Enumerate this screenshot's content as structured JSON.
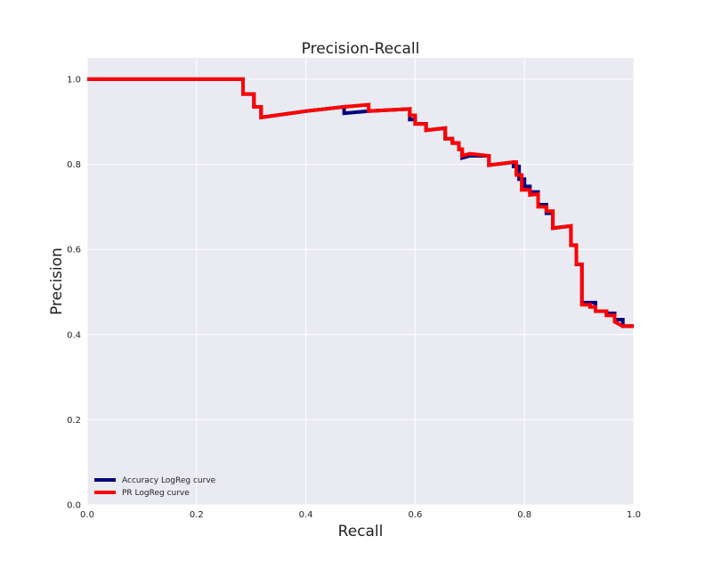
{
  "chart_data": {
    "type": "line",
    "title": "Precision-Recall",
    "xlabel": "Recall",
    "ylabel": "Precision",
    "xlim": [
      0.0,
      1.0
    ],
    "ylim": [
      0.0,
      1.05
    ],
    "xticks": [
      "0.0",
      "0.2",
      "0.4",
      "0.6",
      "0.8",
      "1.0"
    ],
    "yticks": [
      "0.0",
      "0.2",
      "0.4",
      "0.6",
      "0.8",
      "1.0"
    ],
    "xtick_values": [
      0.0,
      0.2,
      0.4,
      0.6,
      0.8,
      1.0
    ],
    "ytick_values": [
      0.0,
      0.2,
      0.4,
      0.6,
      0.8,
      1.0
    ],
    "grid": true,
    "legend_position": "lower-left",
    "series": [
      {
        "name": "Accuracy LogReg curve",
        "color": "#000080",
        "points": [
          [
            0.0,
            1.0
          ],
          [
            0.285,
            1.0
          ],
          [
            0.285,
            0.965
          ],
          [
            0.305,
            0.965
          ],
          [
            0.305,
            0.935
          ],
          [
            0.318,
            0.935
          ],
          [
            0.318,
            0.91
          ],
          [
            0.4,
            0.925
          ],
          [
            0.47,
            0.935
          ],
          [
            0.47,
            0.92
          ],
          [
            0.515,
            0.925
          ],
          [
            0.59,
            0.93
          ],
          [
            0.59,
            0.905
          ],
          [
            0.6,
            0.905
          ],
          [
            0.6,
            0.895
          ],
          [
            0.62,
            0.895
          ],
          [
            0.62,
            0.88
          ],
          [
            0.655,
            0.885
          ],
          [
            0.655,
            0.86
          ],
          [
            0.668,
            0.86
          ],
          [
            0.668,
            0.85
          ],
          [
            0.68,
            0.85
          ],
          [
            0.68,
            0.835
          ],
          [
            0.686,
            0.835
          ],
          [
            0.686,
            0.815
          ],
          [
            0.7,
            0.82
          ],
          [
            0.735,
            0.82
          ],
          [
            0.735,
            0.798
          ],
          [
            0.78,
            0.805
          ],
          [
            0.78,
            0.795
          ],
          [
            0.79,
            0.795
          ],
          [
            0.79,
            0.765
          ],
          [
            0.8,
            0.765
          ],
          [
            0.8,
            0.748
          ],
          [
            0.81,
            0.748
          ],
          [
            0.81,
            0.735
          ],
          [
            0.825,
            0.735
          ],
          [
            0.825,
            0.705
          ],
          [
            0.84,
            0.705
          ],
          [
            0.84,
            0.685
          ],
          [
            0.852,
            0.685
          ],
          [
            0.852,
            0.65
          ],
          [
            0.885,
            0.655
          ],
          [
            0.885,
            0.61
          ],
          [
            0.895,
            0.61
          ],
          [
            0.895,
            0.565
          ],
          [
            0.905,
            0.565
          ],
          [
            0.905,
            0.475
          ],
          [
            0.93,
            0.475
          ],
          [
            0.93,
            0.455
          ],
          [
            0.95,
            0.455
          ],
          [
            0.95,
            0.45
          ],
          [
            0.965,
            0.45
          ],
          [
            0.965,
            0.435
          ],
          [
            0.98,
            0.435
          ],
          [
            0.98,
            0.42
          ],
          [
            1.0,
            0.42
          ]
        ]
      },
      {
        "name": "PR LogReg curve",
        "color": "#ff0000",
        "points": [
          [
            0.0,
            1.0
          ],
          [
            0.285,
            1.0
          ],
          [
            0.285,
            0.965
          ],
          [
            0.305,
            0.965
          ],
          [
            0.305,
            0.935
          ],
          [
            0.318,
            0.935
          ],
          [
            0.318,
            0.91
          ],
          [
            0.4,
            0.925
          ],
          [
            0.47,
            0.935
          ],
          [
            0.515,
            0.94
          ],
          [
            0.515,
            0.925
          ],
          [
            0.59,
            0.93
          ],
          [
            0.59,
            0.915
          ],
          [
            0.6,
            0.915
          ],
          [
            0.6,
            0.895
          ],
          [
            0.62,
            0.895
          ],
          [
            0.62,
            0.88
          ],
          [
            0.655,
            0.885
          ],
          [
            0.655,
            0.86
          ],
          [
            0.668,
            0.86
          ],
          [
            0.668,
            0.85
          ],
          [
            0.68,
            0.85
          ],
          [
            0.68,
            0.835
          ],
          [
            0.686,
            0.835
          ],
          [
            0.686,
            0.82
          ],
          [
            0.7,
            0.825
          ],
          [
            0.735,
            0.82
          ],
          [
            0.735,
            0.798
          ],
          [
            0.78,
            0.805
          ],
          [
            0.785,
            0.805
          ],
          [
            0.785,
            0.775
          ],
          [
            0.795,
            0.775
          ],
          [
            0.795,
            0.74
          ],
          [
            0.81,
            0.74
          ],
          [
            0.81,
            0.728
          ],
          [
            0.825,
            0.73
          ],
          [
            0.825,
            0.7
          ],
          [
            0.84,
            0.7
          ],
          [
            0.84,
            0.69
          ],
          [
            0.852,
            0.69
          ],
          [
            0.852,
            0.65
          ],
          [
            0.885,
            0.655
          ],
          [
            0.885,
            0.61
          ],
          [
            0.895,
            0.61
          ],
          [
            0.895,
            0.565
          ],
          [
            0.905,
            0.565
          ],
          [
            0.905,
            0.47
          ],
          [
            0.92,
            0.47
          ],
          [
            0.92,
            0.465
          ],
          [
            0.93,
            0.465
          ],
          [
            0.93,
            0.455
          ],
          [
            0.95,
            0.455
          ],
          [
            0.95,
            0.445
          ],
          [
            0.965,
            0.445
          ],
          [
            0.965,
            0.43
          ],
          [
            0.98,
            0.42
          ],
          [
            1.0,
            0.42
          ]
        ]
      }
    ]
  }
}
